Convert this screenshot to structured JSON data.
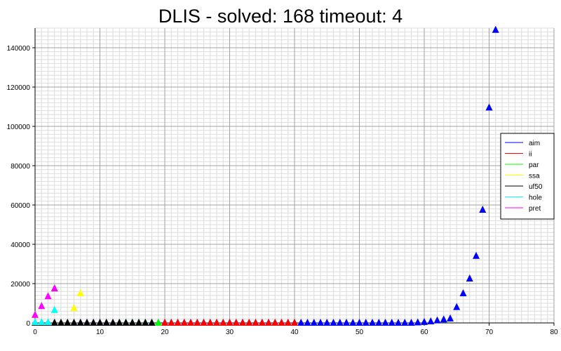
{
  "chart_data": {
    "type": "scatter",
    "title": "DLIS - solved: 168  timeout: 4",
    "xlabel": "",
    "ylabel": "",
    "xlim": [
      0,
      80
    ],
    "ylim": [
      0,
      150000
    ],
    "x_ticks": [
      0,
      10,
      20,
      30,
      40,
      50,
      60,
      70,
      80
    ],
    "y_ticks": [
      0,
      20000,
      40000,
      60000,
      80000,
      100000,
      120000,
      140000
    ],
    "x_tick_labels": [
      "0",
      "10",
      "20",
      "30",
      "40",
      "50",
      "60",
      "70",
      "80"
    ],
    "y_tick_labels": [
      "0",
      "20000",
      "40000",
      "60000",
      "80000",
      "100000",
      "120000",
      "140000"
    ],
    "grid": true,
    "marker": "triangle",
    "legend_position": "right",
    "series": [
      {
        "name": "aim",
        "color": "#0000ff",
        "x": [
          0,
          1,
          2,
          3,
          4,
          5,
          6,
          7,
          8,
          9,
          10,
          11,
          12,
          13,
          14,
          15,
          16,
          17,
          18,
          19,
          20,
          21,
          22,
          23,
          24,
          25,
          26,
          27,
          28,
          29,
          30,
          31,
          32,
          33,
          34,
          35,
          36,
          37,
          38,
          39,
          40,
          41,
          42,
          43,
          44,
          45,
          46,
          47,
          48,
          49,
          50,
          51,
          52,
          53,
          54,
          55,
          56,
          57,
          58,
          59,
          60,
          61,
          62,
          63,
          64,
          65,
          66,
          67,
          68,
          69,
          70,
          71
        ],
        "y": [
          0,
          0,
          0,
          0,
          0,
          0,
          0,
          0,
          0,
          0,
          0,
          0,
          0,
          0,
          0,
          0,
          0,
          0,
          0,
          0,
          0,
          0,
          0,
          0,
          0,
          0,
          0,
          0,
          0,
          0,
          0,
          0,
          0,
          0,
          0,
          0,
          0,
          0,
          0,
          0,
          0,
          0,
          0,
          0,
          0,
          0,
          0,
          0,
          0,
          0,
          0,
          0,
          0,
          0,
          0,
          0,
          0,
          0,
          0,
          200,
          400,
          700,
          1200,
          1700,
          2200,
          8000,
          15000,
          22500,
          34000,
          57500,
          109500,
          149000
        ]
      },
      {
        "name": "ii",
        "color": "#ff0000",
        "x": [
          20,
          21,
          22,
          23,
          24,
          25,
          26,
          27,
          28,
          29,
          30,
          31,
          32,
          33,
          34,
          35,
          36,
          37,
          38,
          39,
          40
        ],
        "y": [
          0,
          0,
          0,
          0,
          0,
          0,
          0,
          0,
          0,
          0,
          0,
          0,
          0,
          0,
          0,
          0,
          0,
          0,
          0,
          0,
          0
        ]
      },
      {
        "name": "par",
        "color": "#00ff00",
        "x": [
          13,
          14,
          15,
          16,
          17,
          18,
          19
        ],
        "y": [
          0,
          0,
          0,
          0,
          0,
          0,
          0
        ]
      },
      {
        "name": "ssa",
        "color": "#ffff00",
        "x": [
          0,
          1,
          2,
          3,
          4,
          5,
          6,
          7
        ],
        "y": [
          0,
          0,
          0,
          0,
          0,
          0,
          7500,
          15000
        ]
      },
      {
        "name": "uf50",
        "color": "#000000",
        "x": [
          0,
          1,
          2,
          3,
          4,
          5,
          6,
          7,
          8,
          9,
          10,
          11,
          12,
          13,
          14,
          15,
          16,
          17,
          18
        ],
        "y": [
          0,
          0,
          0,
          0,
          0,
          0,
          0,
          0,
          0,
          0,
          0,
          0,
          0,
          0,
          0,
          0,
          0,
          0,
          0
        ]
      },
      {
        "name": "hole",
        "color": "#00ffff",
        "x": [
          0,
          1,
          2,
          3
        ],
        "y": [
          300,
          300,
          300,
          6500
        ]
      },
      {
        "name": "pret",
        "color": "#ff00ff",
        "x": [
          0,
          1,
          2,
          3
        ],
        "y": [
          4000,
          8500,
          13500,
          17500
        ]
      }
    ]
  }
}
